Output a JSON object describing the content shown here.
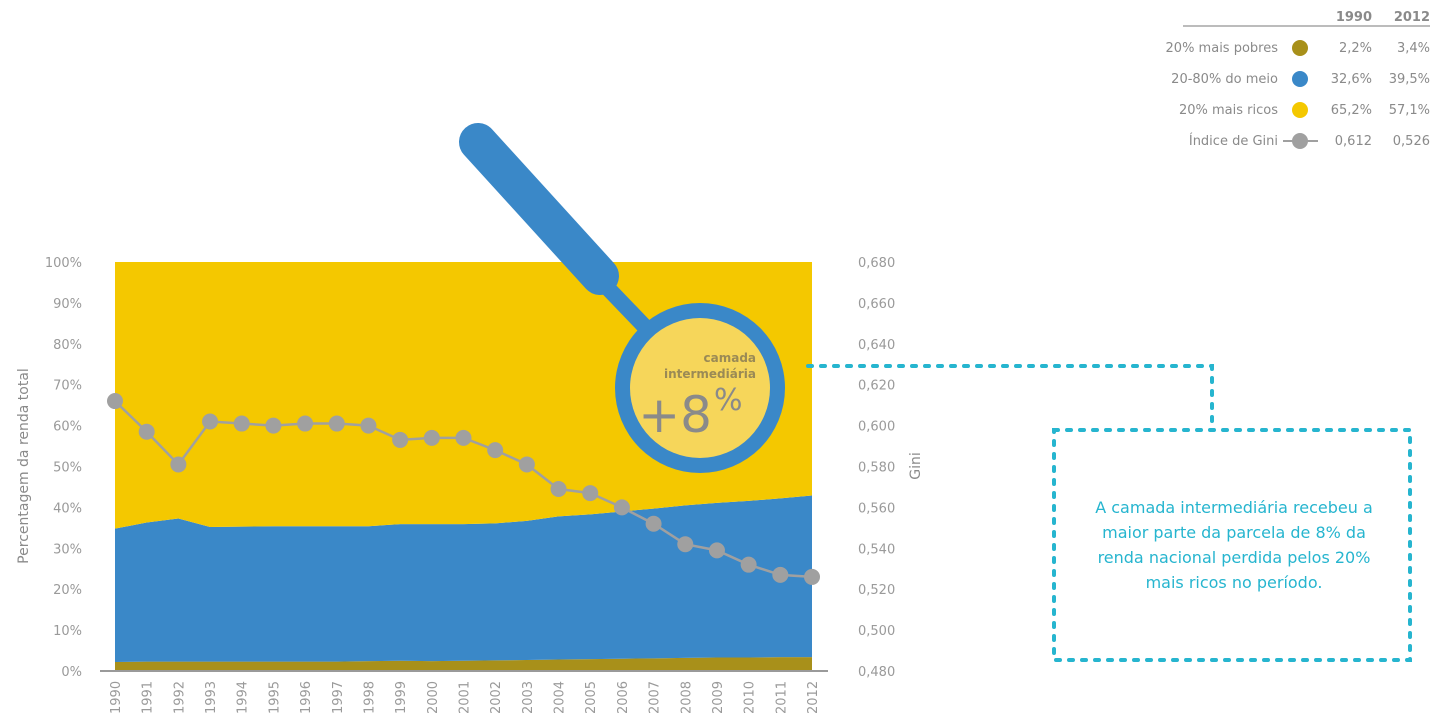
{
  "chart_data": {
    "type": "area",
    "ylabel": "Percentagem da renda total",
    "y2label": "Gini",
    "ylim": [
      0,
      100
    ],
    "y2lim": [
      0.48,
      0.68
    ],
    "yticks": [
      "0%",
      "10%",
      "20%",
      "30%",
      "40%",
      "50%",
      "60%",
      "70%",
      "80%",
      "90%",
      "100%"
    ],
    "y2ticks": [
      "0,480",
      "0,500",
      "0,520",
      "0,540",
      "0,560",
      "0,580",
      "0,600",
      "0,620",
      "0,640",
      "0,660",
      "0,680"
    ],
    "x": [
      "1990",
      "1991",
      "1992",
      "1993",
      "1994",
      "1995",
      "1996",
      "1997",
      "1998",
      "1999",
      "2000",
      "2001",
      "2002",
      "2003",
      "2004",
      "2005",
      "2006",
      "2007",
      "2008",
      "2009",
      "2010",
      "2011",
      "2012"
    ],
    "series": [
      {
        "name": "20% mais pobres",
        "color": "#a8901a",
        "values": [
          2.2,
          2.3,
          2.3,
          2.3,
          2.3,
          2.3,
          2.3,
          2.3,
          2.4,
          2.5,
          2.4,
          2.5,
          2.6,
          2.7,
          2.8,
          2.9,
          3.0,
          3.1,
          3.2,
          3.3,
          3.3,
          3.4,
          3.4
        ]
      },
      {
        "name": "20-80% do meio",
        "color": "#3a88c8",
        "values": [
          32.6,
          34.0,
          35.0,
          32.9,
          33.0,
          33.1,
          33.1,
          33.1,
          33.0,
          33.4,
          33.5,
          33.4,
          33.5,
          34.0,
          35.0,
          35.4,
          36.0,
          36.6,
          37.3,
          37.8,
          38.3,
          38.8,
          39.5
        ]
      },
      {
        "name": "20% mais ricos",
        "color": "#f4c800",
        "values": [
          65.2,
          63.7,
          62.7,
          64.8,
          64.7,
          64.6,
          64.6,
          64.6,
          64.6,
          64.1,
          64.1,
          64.1,
          63.9,
          63.3,
          62.2,
          61.7,
          61.0,
          60.3,
          59.5,
          58.9,
          58.4,
          57.8,
          57.1
        ]
      },
      {
        "name": "Índice de Gini",
        "color": "#a0a0a0",
        "axis": "right",
        "values": [
          0.612,
          0.597,
          0.581,
          0.602,
          0.601,
          0.6,
          0.601,
          0.601,
          0.6,
          0.593,
          0.594,
          0.594,
          0.588,
          0.581,
          0.569,
          0.567,
          0.56,
          0.552,
          0.542,
          0.539,
          0.532,
          0.527,
          0.526
        ]
      }
    ],
    "legend": {
      "headers": [
        "1990",
        "2012"
      ],
      "rows": [
        {
          "label": "20% mais pobres",
          "color": "#a8901a",
          "v1990": "2,2%",
          "v2012": "3,4%"
        },
        {
          "label": "20-80% do meio",
          "color": "#3a88c8",
          "v1990": "32,6%",
          "v2012": "39,5%"
        },
        {
          "label": "20% mais ricos",
          "color": "#f4c800",
          "v1990": "65,2%",
          "v2012": "57,1%"
        },
        {
          "label": "Índice de Gini",
          "color": "#a0a0a0",
          "v1990": "0,612",
          "v2012": "0,526",
          "line": true
        }
      ]
    },
    "annotations": {
      "magnifier_line1": "camada",
      "magnifier_line2": "intermediária",
      "magnifier_value": "+8",
      "magnifier_unit": "%",
      "callout": "A camada intermediária recebeu a maior parte da parcela de 8% da renda nacional perdida pelos 20% mais ricos no período."
    }
  }
}
